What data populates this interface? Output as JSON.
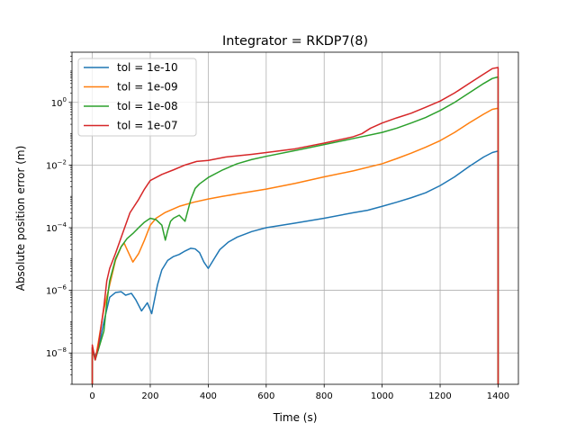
{
  "chart_data": {
    "type": "line",
    "title": "Integrator = RKDP7(8)",
    "xlabel": "Time (s)",
    "ylabel": "Absolute position error (m)",
    "yscale": "log",
    "xlim": [
      -70,
      1470
    ],
    "ylim": [
      1e-09,
      40
    ],
    "grid": true,
    "legend_position": "top-left",
    "x_ticks": [
      {
        "value": 0,
        "label": "0"
      },
      {
        "value": 200,
        "label": "200"
      },
      {
        "value": 400,
        "label": "400"
      },
      {
        "value": 600,
        "label": "600"
      },
      {
        "value": 800,
        "label": "800"
      },
      {
        "value": 1000,
        "label": "1000"
      },
      {
        "value": 1200,
        "label": "1200"
      },
      {
        "value": 1400,
        "label": "1400"
      }
    ],
    "y_ticks": [
      {
        "value": 1e-08,
        "base": "10",
        "exp": "−8"
      },
      {
        "value": 1e-06,
        "base": "10",
        "exp": "−6"
      },
      {
        "value": 0.0001,
        "base": "10",
        "exp": "−4"
      },
      {
        "value": 0.01,
        "base": "10",
        "exp": "−2"
      },
      {
        "value": 1,
        "base": "10",
        "exp": "0"
      }
    ],
    "series": [
      {
        "name": "tol = 1e-10",
        "color": "#1f77b4",
        "points": [
          [
            0,
            1e-09
          ],
          [
            0,
            1.5e-08
          ],
          [
            8,
            8e-09
          ],
          [
            20,
            1.2e-08
          ],
          [
            40,
            1e-07
          ],
          [
            60,
            6e-07
          ],
          [
            80,
            8.5e-07
          ],
          [
            100,
            9e-07
          ],
          [
            115,
            7e-07
          ],
          [
            135,
            8e-07
          ],
          [
            150,
            5e-07
          ],
          [
            170,
            2.2e-07
          ],
          [
            190,
            4e-07
          ],
          [
            205,
            1.8e-07
          ],
          [
            225,
            1.5e-06
          ],
          [
            240,
            4.5e-06
          ],
          [
            260,
            9e-06
          ],
          [
            280,
            1.2e-05
          ],
          [
            300,
            1.4e-05
          ],
          [
            320,
            1.8e-05
          ],
          [
            340,
            2.2e-05
          ],
          [
            355,
            2.1e-05
          ],
          [
            370,
            1.6e-05
          ],
          [
            385,
            8e-06
          ],
          [
            400,
            5e-06
          ],
          [
            420,
            1e-05
          ],
          [
            440,
            2e-05
          ],
          [
            470,
            3.5e-05
          ],
          [
            500,
            5e-05
          ],
          [
            550,
            7.5e-05
          ],
          [
            600,
            0.0001
          ],
          [
            700,
            0.00014
          ],
          [
            800,
            0.0002
          ],
          [
            900,
            0.0003
          ],
          [
            950,
            0.00036
          ],
          [
            1000,
            0.00048
          ],
          [
            1050,
            0.00065
          ],
          [
            1100,
            0.0009
          ],
          [
            1150,
            0.0013
          ],
          [
            1200,
            0.0022
          ],
          [
            1250,
            0.0042
          ],
          [
            1300,
            0.009
          ],
          [
            1350,
            0.018
          ],
          [
            1380,
            0.025
          ],
          [
            1400,
            0.028
          ],
          [
            1400,
            1e-09
          ]
        ]
      },
      {
        "name": "tol = 1e-09",
        "color": "#ff7f0e",
        "points": [
          [
            0,
            1e-09
          ],
          [
            0,
            1.4e-08
          ],
          [
            10,
            6e-09
          ],
          [
            20,
            2e-08
          ],
          [
            40,
            2.5e-07
          ],
          [
            60,
            1.5e-06
          ],
          [
            80,
            9e-06
          ],
          [
            100,
            2.5e-05
          ],
          [
            110,
            3.2e-05
          ],
          [
            120,
            2e-05
          ],
          [
            140,
            8e-06
          ],
          [
            160,
            1.5e-05
          ],
          [
            180,
            4e-05
          ],
          [
            200,
            0.00012
          ],
          [
            220,
            0.0002
          ],
          [
            250,
            0.0003
          ],
          [
            300,
            0.00048
          ],
          [
            350,
            0.00065
          ],
          [
            400,
            0.00082
          ],
          [
            450,
            0.001
          ],
          [
            500,
            0.0012
          ],
          [
            600,
            0.0017
          ],
          [
            700,
            0.0026
          ],
          [
            800,
            0.0042
          ],
          [
            900,
            0.0065
          ],
          [
            1000,
            0.011
          ],
          [
            1050,
            0.016
          ],
          [
            1100,
            0.024
          ],
          [
            1150,
            0.037
          ],
          [
            1200,
            0.06
          ],
          [
            1250,
            0.11
          ],
          [
            1300,
            0.22
          ],
          [
            1350,
            0.42
          ],
          [
            1380,
            0.6
          ],
          [
            1400,
            0.65
          ],
          [
            1400,
            1e-09
          ]
        ]
      },
      {
        "name": "tol = 1e-08",
        "color": "#2ca02c",
        "points": [
          [
            0,
            1e-09
          ],
          [
            0,
            1.5e-08
          ],
          [
            10,
            6e-09
          ],
          [
            20,
            1.2e-08
          ],
          [
            40,
            5e-08
          ],
          [
            50,
            4e-07
          ],
          [
            60,
            2e-06
          ],
          [
            80,
            1e-05
          ],
          [
            100,
            2.5e-05
          ],
          [
            120,
            4.5e-05
          ],
          [
            140,
            6.5e-05
          ],
          [
            160,
            0.0001
          ],
          [
            180,
            0.00015
          ],
          [
            200,
            0.0002
          ],
          [
            220,
            0.00018
          ],
          [
            240,
            0.00012
          ],
          [
            252,
            4e-05
          ],
          [
            260,
            8e-05
          ],
          [
            270,
            0.00016
          ],
          [
            280,
            0.0002
          ],
          [
            300,
            0.00025
          ],
          [
            320,
            0.00016
          ],
          [
            340,
            0.0008
          ],
          [
            355,
            0.0018
          ],
          [
            370,
            0.0025
          ],
          [
            400,
            0.004
          ],
          [
            450,
            0.007
          ],
          [
            500,
            0.011
          ],
          [
            550,
            0.015
          ],
          [
            600,
            0.019
          ],
          [
            700,
            0.029
          ],
          [
            800,
            0.045
          ],
          [
            900,
            0.07
          ],
          [
            1000,
            0.11
          ],
          [
            1050,
            0.15
          ],
          [
            1100,
            0.22
          ],
          [
            1150,
            0.33
          ],
          [
            1200,
            0.55
          ],
          [
            1250,
            1
          ],
          [
            1300,
            2
          ],
          [
            1350,
            4
          ],
          [
            1380,
            5.8
          ],
          [
            1400,
            6.5
          ],
          [
            1400,
            1e-09
          ]
        ]
      },
      {
        "name": "tol = 1e-07",
        "color": "#d62728",
        "points": [
          [
            0,
            1e-09
          ],
          [
            0,
            1.8e-08
          ],
          [
            10,
            6e-09
          ],
          [
            20,
            1.5e-08
          ],
          [
            40,
            3e-07
          ],
          [
            50,
            2e-06
          ],
          [
            60,
            5e-06
          ],
          [
            80,
            1.5e-05
          ],
          [
            100,
            5e-05
          ],
          [
            130,
            0.0003
          ],
          [
            160,
            0.0008
          ],
          [
            180,
            0.0017
          ],
          [
            200,
            0.0032
          ],
          [
            240,
            0.005
          ],
          [
            280,
            0.007
          ],
          [
            320,
            0.01
          ],
          [
            360,
            0.013
          ],
          [
            400,
            0.014
          ],
          [
            460,
            0.018
          ],
          [
            550,
            0.022
          ],
          [
            600,
            0.025
          ],
          [
            700,
            0.033
          ],
          [
            800,
            0.05
          ],
          [
            900,
            0.08
          ],
          [
            930,
            0.1
          ],
          [
            960,
            0.15
          ],
          [
            1000,
            0.22
          ],
          [
            1050,
            0.32
          ],
          [
            1100,
            0.45
          ],
          [
            1150,
            0.7
          ],
          [
            1200,
            1.1
          ],
          [
            1250,
            2
          ],
          [
            1300,
            4
          ],
          [
            1350,
            8
          ],
          [
            1380,
            12
          ],
          [
            1400,
            13
          ],
          [
            1400,
            1e-09
          ]
        ]
      }
    ]
  }
}
